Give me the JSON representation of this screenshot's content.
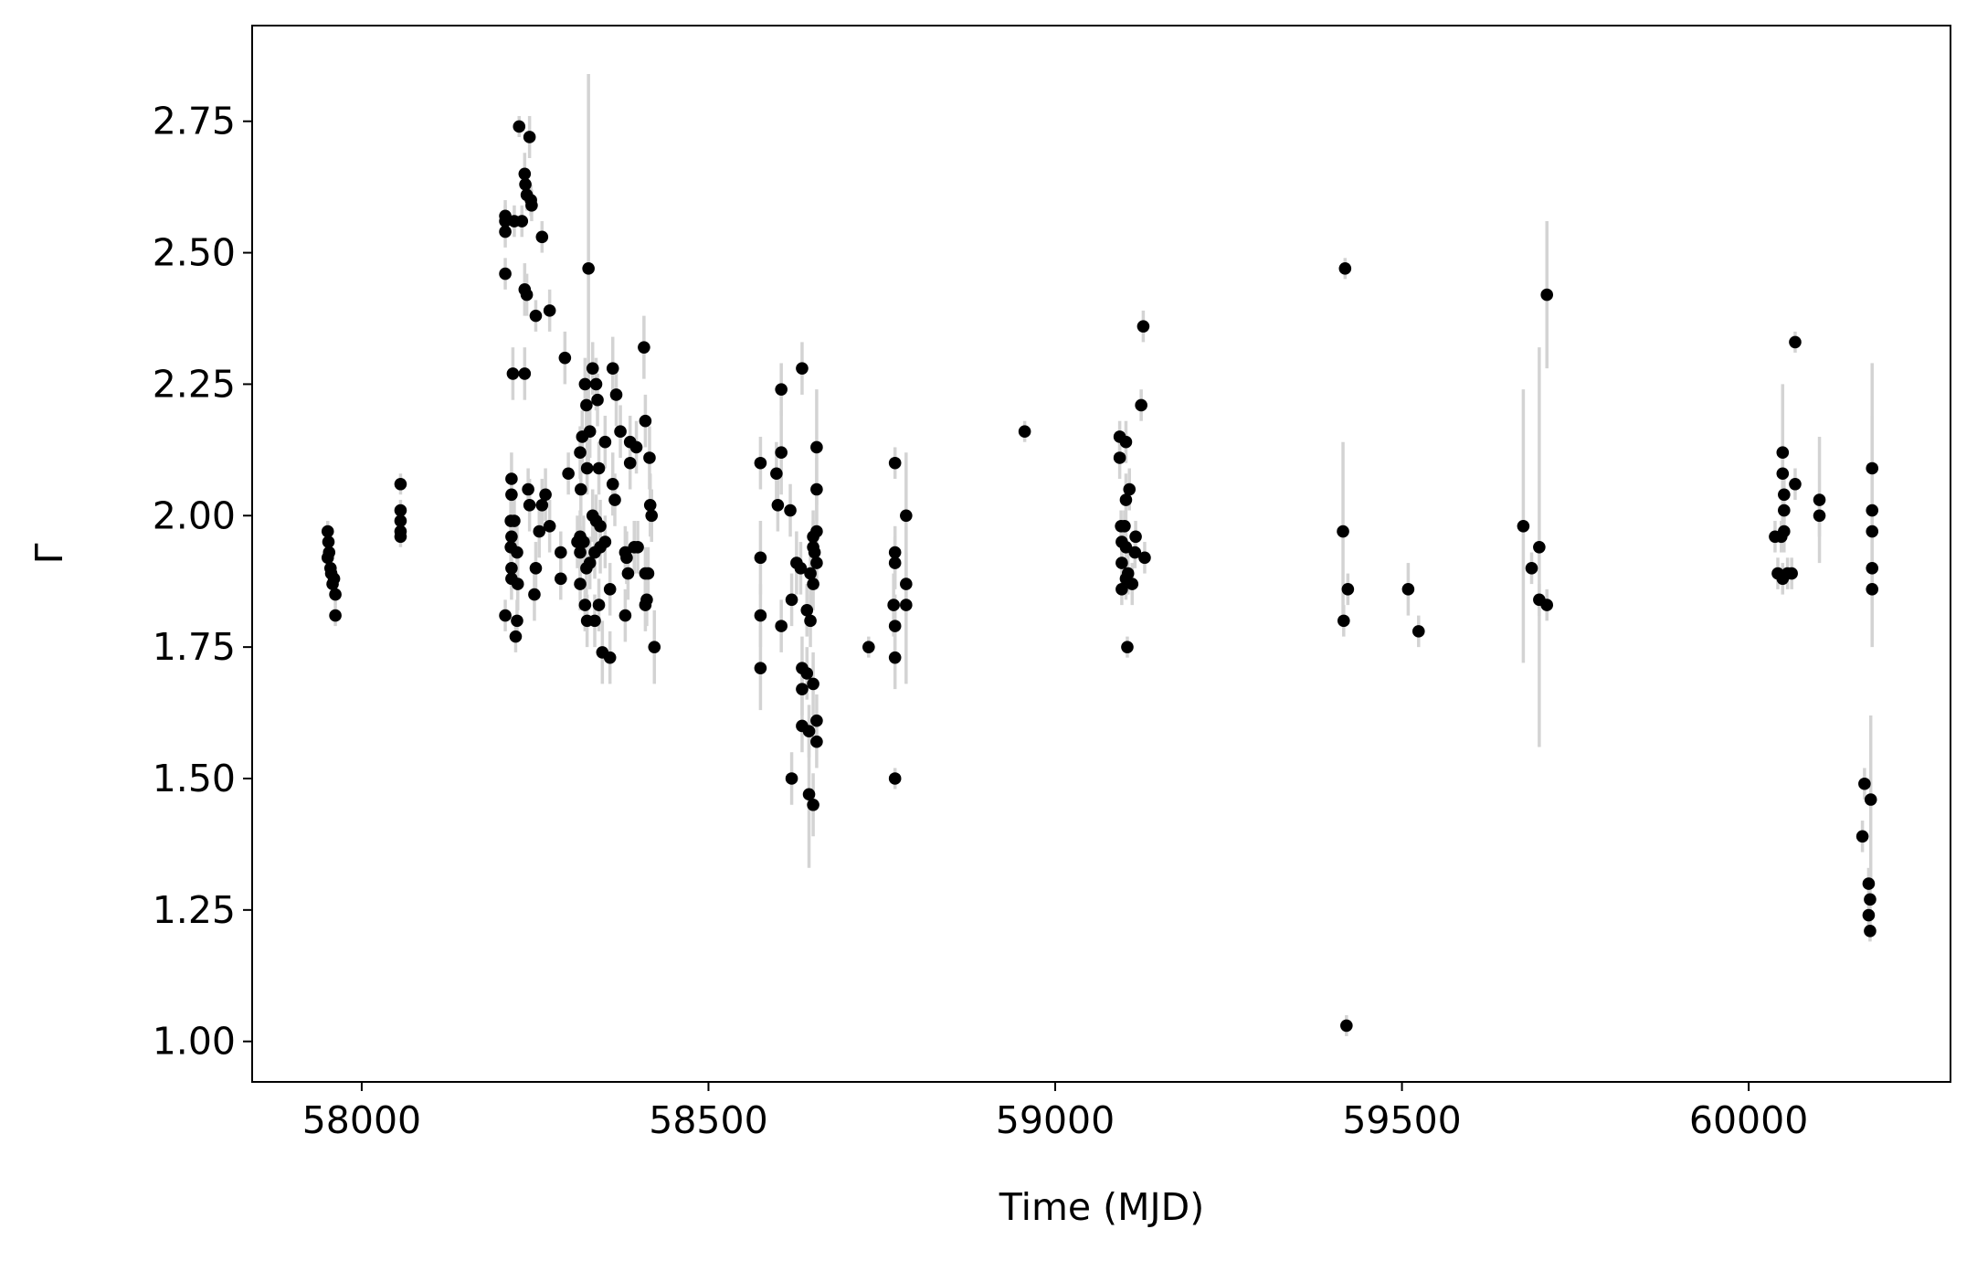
{
  "chart_data": {
    "type": "scatter",
    "xlabel": "Time (MJD)",
    "ylabel": "Γ",
    "xlim": [
      57842,
      60291
    ],
    "ylim": [
      0.923,
      2.932
    ],
    "xticks": [
      58000,
      58500,
      59000,
      59500,
      60000
    ],
    "yticks": [
      {
        "value": 1,
        "label": "1.00"
      },
      1.25,
      {
        "value": 1.5,
        "label": "1.50"
      },
      1.75,
      {
        "value": 2,
        "label": "2.00"
      },
      2.25,
      {
        "value": 2.5,
        "label": "2.50"
      },
      2.75
    ],
    "point_color": "#000000",
    "error_color": "#d3d3d3",
    "x": [
      57951,
      57952,
      57953,
      57951,
      57955,
      57956,
      57958,
      57960,
      57962,
      57962,
      58056,
      58056,
      58056,
      58056,
      58056,
      58207,
      58207,
      58207,
      58227,
      58242,
      58235,
      58236,
      58238,
      58244,
      58245,
      58231,
      58220,
      58207,
      58235,
      58238,
      58251,
      58271,
      58260,
      58218,
      58235,
      58216,
      58216,
      58215,
      58220,
      58216,
      58215,
      58224,
      58216,
      58216,
      58225,
      58207,
      58224,
      58222,
      58240,
      58242,
      58251,
      58249,
      58260,
      58265,
      58271,
      58256,
      58287,
      58287,
      58293,
      58327,
      58298,
      58316,
      58315,
      58318,
      58324,
      58322,
      58333,
      58338,
      58340,
      58329,
      58325,
      58342,
      58333,
      58338,
      58344,
      58315,
      58311,
      58320,
      58315,
      58329,
      58324,
      58336,
      58344,
      58315,
      58322,
      58325,
      58336,
      58342,
      58347,
      58358,
      58351,
      58362,
      58367,
      58362,
      58365,
      58373,
      58380,
      58382,
      58387,
      58396,
      58384,
      58380,
      58358,
      58393,
      58398,
      58407,
      58409,
      58415,
      58409,
      58413,
      58416,
      58418,
      58411,
      58409,
      58422,
      58387,
      58351,
      58575,
      58575,
      58575,
      58575,
      58605,
      58605,
      58598,
      58600,
      58618,
      58605,
      58620,
      58620,
      58635,
      58627,
      58633,
      58635,
      58642,
      58635,
      58635,
      58645,
      58642,
      58651,
      58651,
      58647,
      58651,
      58647,
      58651,
      58656,
      58656,
      58645,
      58651,
      58656,
      58656,
      58656,
      58653,
      58656,
      58731,
      58769,
      58769,
      58769,
      58767,
      58769,
      58769,
      58769,
      58785,
      58785,
      58785,
      58956,
      59093,
      59093,
      59102,
      59102,
      59107,
      59095,
      59100,
      59096,
      59102,
      59096,
      59105,
      59102,
      59111,
      59096,
      59104,
      59116,
      59115,
      59129,
      59124,
      59127,
      59418,
      59415,
      59422,
      59416,
      59420,
      59509,
      59524,
      59675,
      59687,
      59698,
      59698,
      59709,
      59709,
      60042,
      60038,
      60047,
      60049,
      60049,
      60051,
      60051,
      60051,
      60049,
      60056,
      60062,
      60067,
      60067,
      60102,
      60102,
      60164,
      60167,
      60173,
      60175,
      60173,
      60175,
      60176,
      60178,
      60178,
      60178,
      60178,
      60178
    ],
    "values": [
      1.97,
      1.95,
      1.93,
      1.92,
      1.9,
      1.89,
      1.87,
      1.88,
      1.85,
      1.81,
      2.06,
      2.01,
      1.99,
      1.97,
      1.96,
      2.57,
      2.56,
      2.54,
      2.74,
      2.72,
      2.65,
      2.63,
      2.61,
      2.6,
      2.59,
      2.56,
      2.56,
      2.46,
      2.43,
      2.42,
      2.38,
      2.39,
      2.53,
      2.27,
      2.27,
      2.07,
      2.04,
      1.99,
      1.99,
      1.96,
      1.94,
      1.93,
      1.9,
      1.88,
      1.87,
      1.81,
      1.8,
      1.77,
      2.05,
      2.02,
      1.9,
      1.85,
      2.02,
      2.04,
      1.98,
      1.97,
      1.93,
      1.88,
      2.3,
      2.47,
      2.08,
      2.05,
      2.12,
      2.15,
      2.21,
      2.25,
      2.28,
      2.25,
      2.22,
      2.16,
      2.09,
      2.09,
      2.0,
      1.99,
      1.98,
      1.96,
      1.95,
      1.95,
      1.93,
      1.91,
      1.9,
      1.93,
      1.94,
      1.87,
      1.83,
      1.8,
      1.8,
      1.83,
      1.74,
      1.73,
      2.14,
      2.28,
      2.23,
      2.06,
      2.03,
      2.16,
      1.93,
      1.92,
      2.14,
      2.13,
      1.89,
      1.81,
      1.86,
      1.94,
      1.94,
      2.32,
      2.18,
      2.11,
      1.89,
      1.89,
      2.02,
      2.0,
      1.84,
      1.83,
      1.75,
      2.1,
      1.95,
      2.1,
      1.92,
      1.81,
      1.71,
      2.24,
      2.12,
      2.08,
      2.02,
      2.01,
      1.79,
      1.84,
      1.5,
      2.28,
      1.91,
      1.9,
      1.71,
      1.7,
      1.67,
      1.6,
      1.59,
      1.82,
      1.96,
      1.94,
      1.89,
      1.87,
      1.8,
      1.68,
      1.61,
      1.57,
      1.47,
      1.45,
      1.97,
      2.05,
      2.13,
      1.93,
      1.91,
      1.75,
      2.1,
      1.93,
      1.91,
      1.83,
      1.79,
      1.73,
      1.5,
      2.0,
      1.87,
      1.83,
      2.16,
      2.15,
      2.11,
      2.14,
      2.03,
      2.05,
      1.98,
      1.98,
      1.95,
      1.94,
      1.91,
      1.89,
      1.88,
      1.87,
      1.86,
      1.75,
      1.96,
      1.93,
      1.92,
      2.21,
      2.36,
      2.47,
      1.97,
      1.86,
      1.8,
      1.03,
      1.86,
      1.78,
      1.98,
      1.9,
      1.94,
      1.84,
      1.83,
      2.42,
      1.89,
      1.96,
      1.96,
      2.12,
      2.08,
      2.04,
      2.01,
      1.97,
      1.88,
      1.89,
      1.89,
      2.06,
      2.33,
      2.03,
      2.0,
      1.39,
      1.49,
      1.3,
      1.27,
      1.24,
      1.21,
      1.46,
      2.09,
      2.01,
      1.97,
      1.9,
      1.86
    ],
    "errors": [
      0.02,
      0.02,
      0.02,
      0.02,
      0.02,
      0.02,
      0.02,
      0.02,
      0.02,
      0.02,
      0.02,
      0.02,
      0.02,
      0.02,
      0.02,
      0.03,
      0.03,
      0.03,
      0.02,
      0.04,
      0.04,
      0.03,
      0.03,
      0.03,
      0.03,
      0.03,
      0.03,
      0.03,
      0.05,
      0.04,
      0.03,
      0.04,
      0.03,
      0.05,
      0.05,
      0.05,
      0.04,
      0.05,
      0.04,
      0.04,
      0.04,
      0.05,
      0.04,
      0.04,
      0.05,
      0.03,
      0.04,
      0.03,
      0.04,
      0.05,
      0.05,
      0.05,
      0.05,
      0.05,
      0.05,
      0.05,
      0.04,
      0.04,
      0.05,
      0.37,
      0.04,
      0.05,
      0.05,
      0.05,
      0.05,
      0.05,
      0.05,
      0.05,
      0.05,
      0.05,
      0.05,
      0.05,
      0.05,
      0.05,
      0.05,
      0.05,
      0.05,
      0.05,
      0.05,
      0.05,
      0.05,
      0.05,
      0.05,
      0.05,
      0.05,
      0.05,
      0.05,
      0.05,
      0.06,
      0.05,
      0.05,
      0.06,
      0.06,
      0.06,
      0.05,
      0.05,
      0.05,
      0.05,
      0.05,
      0.05,
      0.05,
      0.05,
      0.05,
      0.05,
      0.05,
      0.06,
      0.05,
      0.06,
      0.05,
      0.05,
      0.06,
      0.05,
      0.05,
      0.05,
      0.07,
      0.05,
      0.05,
      0.05,
      0.07,
      0.06,
      0.08,
      0.05,
      0.08,
      0.06,
      0.05,
      0.05,
      0.05,
      0.05,
      0.05,
      0.05,
      0.06,
      0.05,
      0.06,
      0.05,
      0.05,
      0.05,
      0.05,
      0.05,
      0.05,
      0.05,
      0.05,
      0.05,
      0.05,
      0.06,
      0.05,
      0.05,
      0.14,
      0.06,
      0.06,
      0.06,
      0.11,
      0.05,
      0.05,
      0.02,
      0.03,
      0.05,
      0.05,
      0.06,
      0.06,
      0.06,
      0.02,
      0.12,
      0.06,
      0.15,
      0.02,
      0.03,
      0.04,
      0.04,
      0.05,
      0.04,
      0.03,
      0.03,
      0.04,
      0.04,
      0.03,
      0.04,
      0.04,
      0.04,
      0.03,
      0.02,
      0.03,
      0.03,
      0.03,
      0.03,
      0.03,
      0.02,
      0.17,
      0.03,
      0.03,
      0.02,
      0.05,
      0.03,
      0.26,
      0.03,
      0.38,
      0.03,
      0.03,
      0.14,
      0.03,
      0.03,
      0.03,
      0.13,
      0.05,
      0.05,
      0.04,
      0.04,
      0.03,
      0.03,
      0.03,
      0.03,
      0.02,
      0.12,
      0.04,
      0.03,
      0.03,
      0.03,
      0.04,
      0.03,
      0.02,
      0.16,
      0.2,
      0.18,
      0.22,
      0.05,
      0.1
    ]
  }
}
